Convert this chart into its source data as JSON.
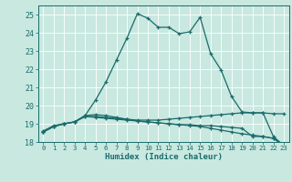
{
  "title": "",
  "xlabel": "Humidex (Indice chaleur)",
  "xlim": [
    -0.5,
    23.5
  ],
  "ylim": [
    18.0,
    25.5
  ],
  "yticks": [
    18,
    19,
    20,
    21,
    22,
    23,
    24,
    25
  ],
  "xticks": [
    0,
    1,
    2,
    3,
    4,
    5,
    6,
    7,
    8,
    9,
    10,
    11,
    12,
    13,
    14,
    15,
    16,
    17,
    18,
    19,
    20,
    21,
    22,
    23
  ],
  "bg_color": "#c8e8e0",
  "line_color": "#1a6b6b",
  "grid_color": "#b8d8d0",
  "curve1_x": [
    0,
    1,
    2,
    3,
    4,
    5,
    6,
    7,
    8,
    9,
    10,
    11,
    12,
    13,
    14,
    15,
    16,
    17,
    18,
    19,
    20,
    21,
    22,
    23
  ],
  "curve1_y": [
    18.6,
    18.9,
    19.0,
    19.1,
    19.45,
    20.3,
    21.3,
    22.5,
    23.7,
    25.05,
    24.8,
    24.3,
    24.3,
    23.95,
    24.05,
    24.85,
    22.85,
    21.95,
    20.5,
    19.65,
    19.6,
    19.6,
    19.55,
    19.55
  ],
  "curve2_x": [
    0,
    1,
    2,
    3,
    4,
    5,
    6,
    7,
    8,
    9,
    10,
    11,
    12,
    13,
    14,
    15,
    16,
    17,
    18,
    19,
    20,
    21,
    22,
    23
  ],
  "curve2_y": [
    18.55,
    18.85,
    19.0,
    19.1,
    19.45,
    19.5,
    19.45,
    19.35,
    19.25,
    19.15,
    19.1,
    19.05,
    19.0,
    18.95,
    18.95,
    18.9,
    18.9,
    18.85,
    18.8,
    18.75,
    18.3,
    18.3,
    18.2,
    17.8
  ],
  "curve3_x": [
    0,
    1,
    2,
    3,
    4,
    5,
    6,
    7,
    8,
    9,
    10,
    11,
    12,
    13,
    14,
    15,
    16,
    17,
    18,
    19,
    20,
    21,
    22,
    23
  ],
  "curve3_y": [
    18.55,
    18.85,
    19.0,
    19.1,
    19.4,
    19.4,
    19.35,
    19.3,
    19.25,
    19.2,
    19.2,
    19.2,
    19.25,
    19.3,
    19.35,
    19.4,
    19.45,
    19.5,
    19.55,
    19.6,
    19.6,
    19.6,
    18.3,
    17.8
  ],
  "curve4_x": [
    0,
    1,
    2,
    3,
    4,
    5,
    6,
    7,
    8,
    9,
    10,
    11,
    12,
    13,
    14,
    15,
    16,
    17,
    18,
    19,
    20,
    21,
    22,
    23
  ],
  "curve4_y": [
    18.55,
    18.85,
    19.0,
    19.1,
    19.4,
    19.35,
    19.3,
    19.25,
    19.2,
    19.15,
    19.1,
    19.05,
    19.0,
    18.95,
    18.9,
    18.85,
    18.75,
    18.65,
    18.55,
    18.45,
    18.38,
    18.3,
    18.2,
    17.8
  ]
}
